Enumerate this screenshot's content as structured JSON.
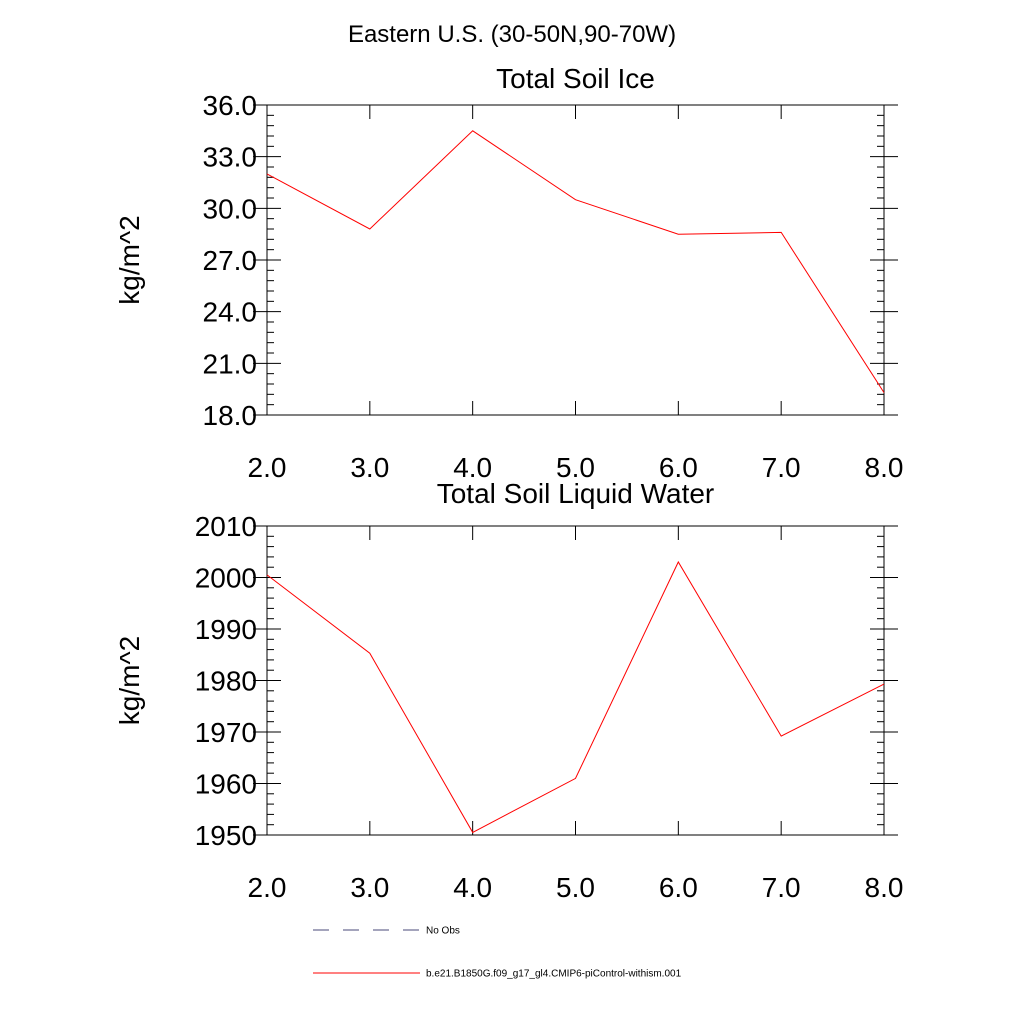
{
  "figure": {
    "title": "Eastern U.S. (30-50N,90-70W)"
  },
  "chart_data": [
    {
      "type": "line",
      "title": "Total Soil Ice",
      "xlabel": "",
      "ylabel": "kg/m^2",
      "xlim": [
        2.0,
        8.0
      ],
      "ylim": [
        18.0,
        36.0
      ],
      "x_ticks": [
        "2.0",
        "3.0",
        "4.0",
        "5.0",
        "6.0",
        "7.0",
        "8.0"
      ],
      "y_ticks": [
        "18.0",
        "21.0",
        "24.0",
        "27.0",
        "30.0",
        "33.0",
        "36.0"
      ],
      "grid": false,
      "series": [
        {
          "name": "b.e21.B1850G.f09_g17_gl4.CMIP6-piControl-withism.001",
          "color": "#ff0000",
          "x": [
            2.0,
            3.0,
            4.0,
            5.0,
            6.0,
            7.0,
            8.0
          ],
          "y": [
            32.0,
            28.8,
            34.5,
            30.5,
            28.5,
            28.6,
            19.3
          ]
        }
      ]
    },
    {
      "type": "line",
      "title": "Total Soil Liquid Water",
      "xlabel": "",
      "ylabel": "kg/m^2",
      "xlim": [
        2.0,
        8.0
      ],
      "ylim": [
        1950,
        2010
      ],
      "x_ticks": [
        "2.0",
        "3.0",
        "4.0",
        "5.0",
        "6.0",
        "7.0",
        "8.0"
      ],
      "y_ticks": [
        "1950",
        "1960",
        "1970",
        "1980",
        "1990",
        "2000",
        "2010"
      ],
      "grid": false,
      "series": [
        {
          "name": "b.e21.B1850G.f09_g17_gl4.CMIP6-piControl-withism.001",
          "color": "#ff0000",
          "x": [
            2.0,
            3.0,
            4.0,
            5.0,
            6.0,
            7.0,
            8.0
          ],
          "y": [
            2000.5,
            1985.3,
            1950.5,
            1961.0,
            2003.0,
            1969.2,
            1979.3
          ]
        }
      ]
    }
  ],
  "legend": {
    "placement": "bottom",
    "entries": [
      {
        "label": "No Obs",
        "style": "dashed",
        "color": "#4a4a7a"
      },
      {
        "label": "b.e21.B1850G.f09_g17_gl4.CMIP6-piControl-withism.001",
        "style": "solid",
        "color": "#ff0000"
      }
    ]
  }
}
